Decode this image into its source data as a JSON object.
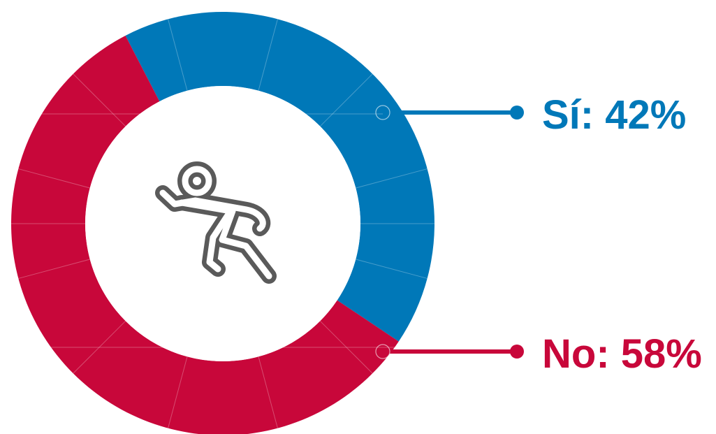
{
  "chart_data": {
    "type": "pie",
    "donut": true,
    "categories": [
      "Sí",
      "No"
    ],
    "values": [
      42,
      58
    ],
    "value_labels": [
      "Sí: 42%",
      "No: 58%"
    ],
    "colors": [
      "#0078B8",
      "#C8073A"
    ],
    "center_icon": "person-falling-icon",
    "icon_color": "#5A5A5A",
    "legend": "right",
    "title": "",
    "xlabel": "",
    "ylabel": ""
  }
}
